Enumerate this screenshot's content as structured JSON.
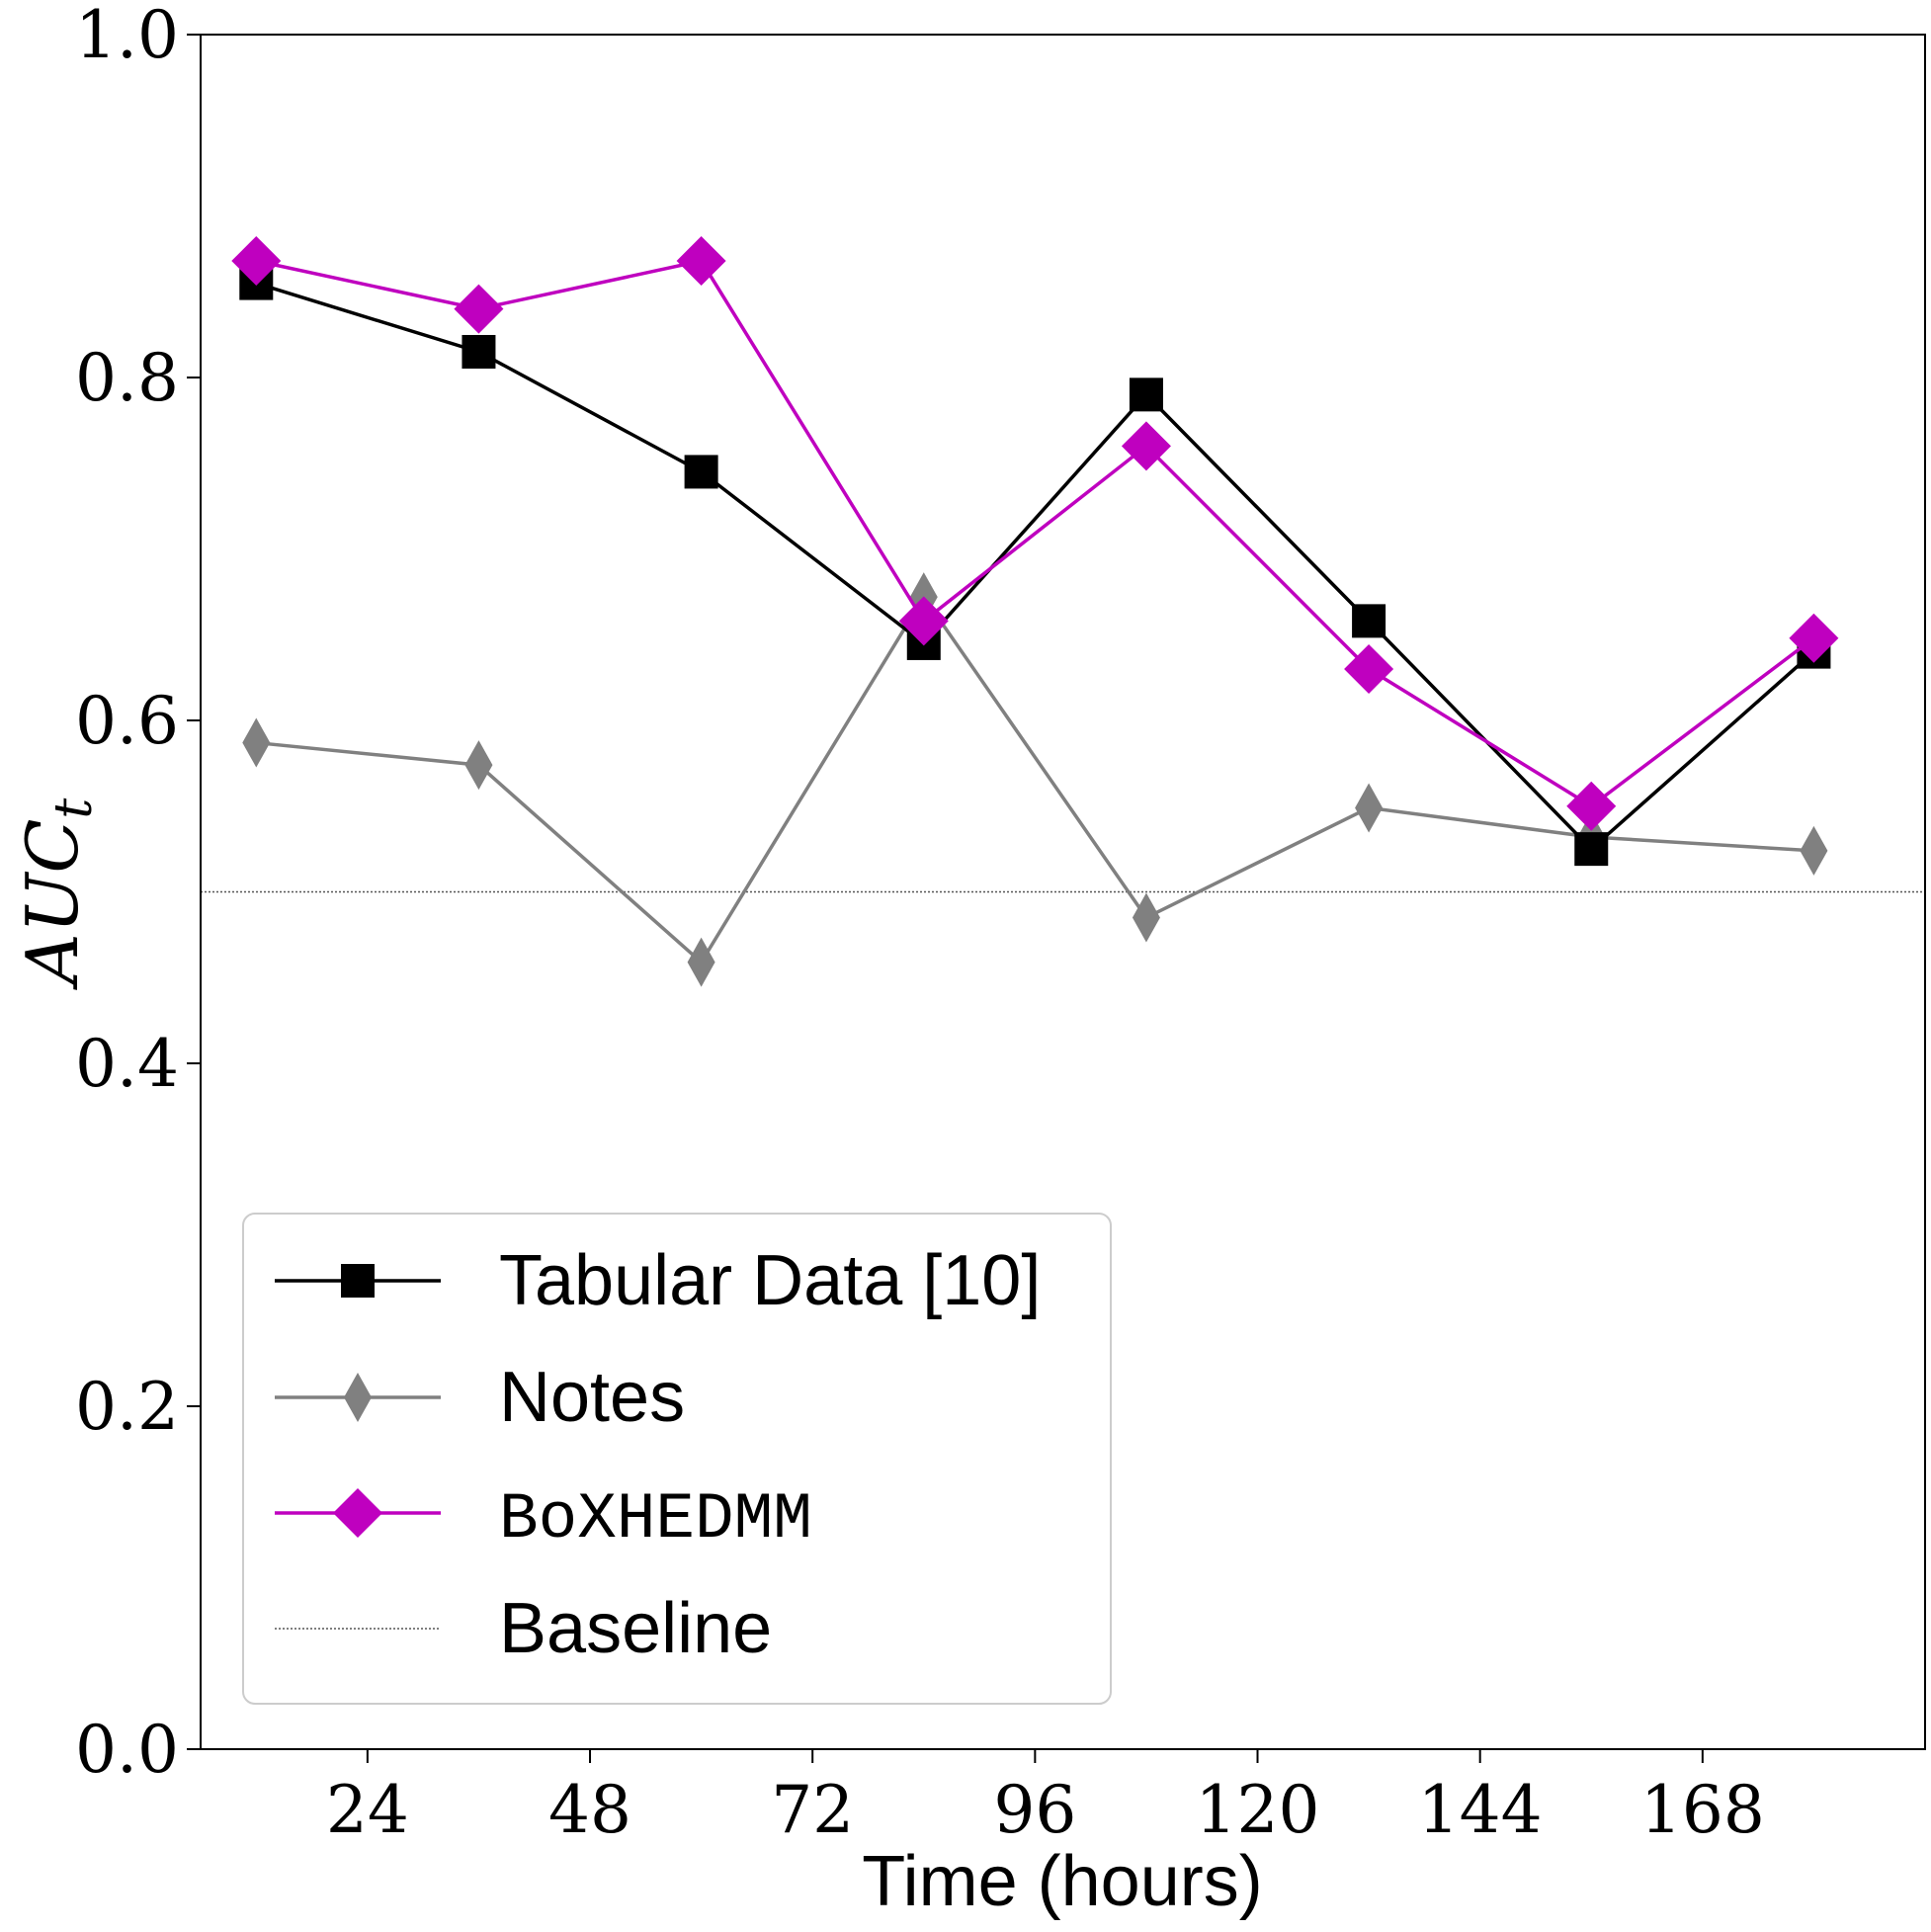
{
  "chart_data": {
    "type": "line",
    "title": "",
    "xlabel": "Time (hours)",
    "ylabel_main": "AUC",
    "ylabel_sub": "t",
    "xlim": [
      6,
      192
    ],
    "ylim": [
      0.0,
      1.0
    ],
    "xticks": [
      24,
      48,
      72,
      96,
      120,
      144,
      168
    ],
    "xtick_labels": [
      "24",
      "48",
      "72",
      "96",
      "120",
      "144",
      "168"
    ],
    "yticks": [
      0.0,
      0.2,
      0.4,
      0.6,
      0.8,
      1.0
    ],
    "ytick_labels": [
      "0.0",
      "0.2",
      "0.4",
      "0.6",
      "0.8",
      "1.0"
    ],
    "grid": false,
    "legend_position": "lower-left",
    "x": [
      12,
      36,
      60,
      84,
      108,
      132,
      156,
      180
    ],
    "series": [
      {
        "name": "Tabular Data [10]",
        "color": "#000000",
        "marker": "square",
        "values": [
          0.855,
          0.815,
          0.745,
          0.645,
          0.79,
          0.658,
          0.525,
          0.64
        ]
      },
      {
        "name": "Notes",
        "color": "#808080",
        "marker": "thin-diamond",
        "values": [
          0.587,
          0.574,
          0.459,
          0.672,
          0.485,
          0.549,
          0.532,
          0.524
        ]
      },
      {
        "name": "BoXHEDMM",
        "color": "#bf00bf",
        "marker": "diamond",
        "values": [
          0.868,
          0.84,
          0.868,
          0.658,
          0.76,
          0.63,
          0.55,
          0.648
        ]
      }
    ],
    "baseline": {
      "name": "Baseline",
      "value": 0.5,
      "color": "#555555"
    }
  }
}
